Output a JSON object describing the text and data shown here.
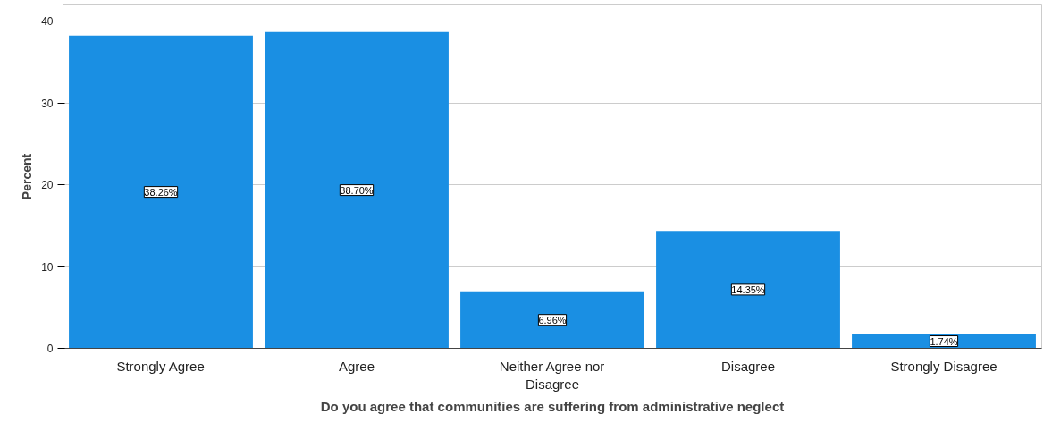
{
  "chart_data": {
    "type": "bar",
    "xlabel": "Do you agree that communities are suffering from administrative neglect",
    "ylabel": "Percent",
    "categories": [
      "Strongly Agree",
      "Agree",
      "Neither Agree nor Disagree",
      "Disagree",
      "Strongly Disagree"
    ],
    "values": [
      38.26,
      38.7,
      6.96,
      14.35,
      1.74
    ],
    "value_labels": [
      "38.26%",
      "38.70%",
      "6.96%",
      "14.35%",
      "1.74%"
    ],
    "color": "#1a8fe3",
    "ylim": [
      0,
      42
    ],
    "yticks": [
      0,
      10,
      20,
      30,
      40
    ],
    "grid": "y"
  }
}
